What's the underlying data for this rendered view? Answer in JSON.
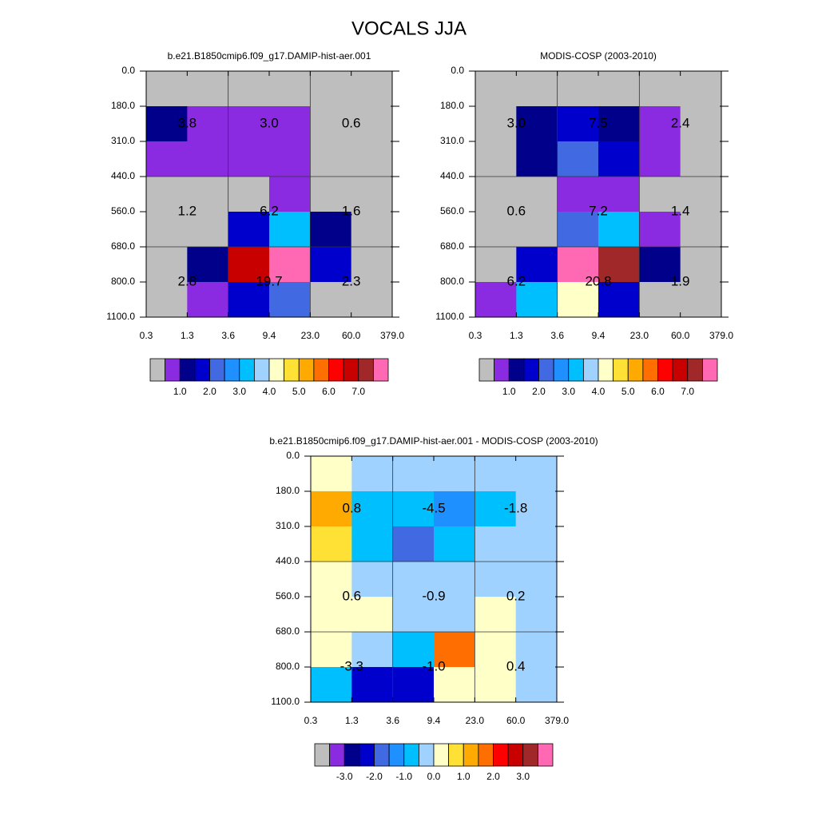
{
  "title": "VOCALS JJA",
  "chart_data": [
    {
      "type": "heatmap",
      "title": "b.e21.B1850cmip6.f09_g17.DAMIP-hist-aer.001",
      "x_edges": [
        0.3,
        1.3,
        3.6,
        9.4,
        {
          "value": 23,
          "label": "23.0"
        },
        {
          "value": 60,
          "label": "60.0"
        },
        {
          "value": 379,
          "label": "379.0"
        }
      ],
      "y_edges": [
        {
          "value": 0,
          "label": "0.0"
        },
        {
          "value": 180,
          "label": "180.0"
        },
        {
          "value": 310,
          "label": "310.0"
        },
        {
          "value": 440,
          "label": "440.0"
        },
        {
          "value": 560,
          "label": "560.0"
        },
        {
          "value": 680,
          "label": "680.0"
        },
        {
          "value": 800,
          "label": "800.0"
        },
        {
          "value": 1100,
          "label": "1100.0"
        }
      ],
      "values": [
        [
          0.2,
          0.2,
          0.2,
          0.2,
          0.2,
          0.2
        ],
        [
          1.25,
          0.75,
          0.75,
          0.75,
          0.2,
          0.2
        ],
        [
          0.75,
          0.75,
          0.75,
          0.75,
          0.2,
          0.2
        ],
        [
          0.2,
          0.2,
          0.2,
          0.75,
          0.2,
          0.2
        ],
        [
          0.2,
          0.2,
          1.75,
          3.25,
          1.25,
          0.2
        ],
        [
          0.2,
          1.25,
          6.75,
          7.75,
          1.75,
          0.2
        ],
        [
          0.2,
          0.75,
          1.75,
          2.25,
          0.2,
          0.2
        ]
      ],
      "levels": [
        0.5,
        1,
        1.5,
        2,
        2.5,
        3,
        3.5,
        4,
        4.5,
        5,
        5.5,
        6,
        6.5,
        7,
        7.5
      ],
      "colors": [
        "#bebebe",
        "#8a2be2",
        "#00008b",
        "#0000cd",
        "#4169e1",
        "#1e90ff",
        "#00bfff",
        "#a0d2ff",
        "#ffffc8",
        "#ffe135",
        "#ffaa00",
        "#ff6e00",
        "#ff0000",
        "#c80000",
        "#a02828",
        "#ff69b4"
      ],
      "colorbar_ticks": [
        {
          "value": 1,
          "label": "1.0"
        },
        {
          "value": 2,
          "label": "2.0"
        },
        {
          "value": 3,
          "label": "3.0"
        },
        {
          "value": 4,
          "label": "4.0"
        },
        {
          "value": 5,
          "label": "5.0"
        },
        {
          "value": 6,
          "label": "6.0"
        },
        {
          "value": 7,
          "label": "7.0"
        }
      ],
      "annotations": {
        "values": [
          3.8,
          3,
          0.6,
          1.2,
          6.2,
          1.6,
          2.8,
          19.7,
          2.3
        ],
        "value_labels": [
          "3.8",
          "3.0",
          "0.6",
          "1.2",
          "6.2",
          "1.6",
          "2.8",
          "19.7",
          "2.3"
        ]
      }
    },
    {
      "type": "heatmap",
      "title": "MODIS-COSP (2003-2010)",
      "x_edges": [
        0.3,
        1.3,
        3.6,
        9.4,
        {
          "value": 23,
          "label": "23.0"
        },
        {
          "value": 60,
          "label": "60.0"
        },
        {
          "value": 379,
          "label": "379.0"
        }
      ],
      "y_edges": [
        {
          "value": 0,
          "label": "0.0"
        },
        {
          "value": 180,
          "label": "180.0"
        },
        {
          "value": 310,
          "label": "310.0"
        },
        {
          "value": 440,
          "label": "440.0"
        },
        {
          "value": 560,
          "label": "560.0"
        },
        {
          "value": 680,
          "label": "680.0"
        },
        {
          "value": 800,
          "label": "800.0"
        },
        {
          "value": 1100,
          "label": "1100.0"
        }
      ],
      "values": [
        [
          0.2,
          0.2,
          0.2,
          0.2,
          0.2,
          0.2
        ],
        [
          0.2,
          1.25,
          1.75,
          1.25,
          0.75,
          0.2
        ],
        [
          0.2,
          1.25,
          2.25,
          1.75,
          0.75,
          0.2
        ],
        [
          0.2,
          0.2,
          0.75,
          0.75,
          0.2,
          0.2
        ],
        [
          0.2,
          0.2,
          2.25,
          3.25,
          0.75,
          0.2
        ],
        [
          0.2,
          1.75,
          7.75,
          7.25,
          1.25,
          0.2
        ],
        [
          0.75,
          3.25,
          4.25,
          1.75,
          0.2,
          0.2
        ]
      ],
      "levels": [
        0.5,
        1,
        1.5,
        2,
        2.5,
        3,
        3.5,
        4,
        4.5,
        5,
        5.5,
        6,
        6.5,
        7,
        7.5
      ],
      "colors": [
        "#bebebe",
        "#8a2be2",
        "#00008b",
        "#0000cd",
        "#4169e1",
        "#1e90ff",
        "#00bfff",
        "#a0d2ff",
        "#ffffc8",
        "#ffe135",
        "#ffaa00",
        "#ff6e00",
        "#ff0000",
        "#c80000",
        "#a02828",
        "#ff69b4"
      ],
      "colorbar_ticks": [
        {
          "value": 1,
          "label": "1.0"
        },
        {
          "value": 2,
          "label": "2.0"
        },
        {
          "value": 3,
          "label": "3.0"
        },
        {
          "value": 4,
          "label": "4.0"
        },
        {
          "value": 5,
          "label": "5.0"
        },
        {
          "value": 6,
          "label": "6.0"
        },
        {
          "value": 7,
          "label": "7.0"
        }
      ],
      "annotations": {
        "values": [
          3,
          7.5,
          2.4,
          0.6,
          7.2,
          1.4,
          6.2,
          20.8,
          1.9
        ],
        "value_labels": [
          "3.0",
          "7.5",
          "2.4",
          "0.6",
          "7.2",
          "1.4",
          "6.2",
          "20.8",
          "1.9"
        ]
      }
    },
    {
      "type": "heatmap",
      "title": "b.e21.B1850cmip6.f09_g17.DAMIP-hist-aer.001 - MODIS-COSP (2003-2010)",
      "x_edges": [
        0.3,
        1.3,
        3.6,
        9.4,
        {
          "value": 23,
          "label": "23.0"
        },
        {
          "value": 60,
          "label": "60.0"
        },
        {
          "value": 379,
          "label": "379.0"
        }
      ],
      "y_edges": [
        {
          "value": 0,
          "label": "0.0"
        },
        {
          "value": 180,
          "label": "180.0"
        },
        {
          "value": 310,
          "label": "310.0"
        },
        {
          "value": 440,
          "label": "440.0"
        },
        {
          "value": 560,
          "label": "560.0"
        },
        {
          "value": 680,
          "label": "680.0"
        },
        {
          "value": 800,
          "label": "800.0"
        },
        {
          "value": 1100,
          "label": "1100.0"
        }
      ],
      "values": [
        [
          0.25,
          -0.25,
          -0.25,
          -0.25,
          -0.25,
          -0.25
        ],
        [
          1.25,
          -0.75,
          -0.75,
          -1.25,
          -0.75,
          -0.25
        ],
        [
          0.75,
          -0.75,
          -1.75,
          -0.75,
          -0.25,
          -0.25
        ],
        [
          0.25,
          -0.25,
          -0.25,
          -0.25,
          -0.25,
          -0.25
        ],
        [
          0.25,
          0.25,
          -0.25,
          -0.25,
          0.25,
          -0.25
        ],
        [
          0.25,
          -0.25,
          -0.75,
          1.75,
          0.25,
          -0.25
        ],
        [
          -0.75,
          -2.25,
          -2.25,
          0.25,
          0.25,
          -0.25
        ]
      ],
      "levels": [
        -3.5,
        -3,
        -2.5,
        -2,
        -1.5,
        -1,
        -0.5,
        0,
        0.5,
        1,
        1.5,
        2,
        2.5,
        3,
        3.5
      ],
      "colors": [
        "#bebebe",
        "#8a2be2",
        "#00008b",
        "#0000cd",
        "#4169e1",
        "#1e90ff",
        "#00bfff",
        "#a0d2ff",
        "#ffffc8",
        "#ffe135",
        "#ffaa00",
        "#ff6e00",
        "#ff0000",
        "#c80000",
        "#a02828",
        "#ff69b4"
      ],
      "colorbar_ticks": [
        {
          "value": -3,
          "label": "-3.0"
        },
        {
          "value": -2,
          "label": "-2.0"
        },
        {
          "value": -1,
          "label": "-1.0"
        },
        {
          "value": 0,
          "label": "0.0"
        },
        {
          "value": 1,
          "label": "1.0"
        },
        {
          "value": 2,
          "label": "2.0"
        },
        {
          "value": 3,
          "label": "3.0"
        }
      ],
      "annotations": {
        "values": [
          0.8,
          -4.5,
          -1.8,
          0.6,
          -0.9,
          0.2,
          -3.3,
          -1,
          0.4
        ],
        "value_labels": [
          "0.8",
          "-4.5",
          "-1.8",
          "0.6",
          "-0.9",
          "0.2",
          "-3.3",
          "-1.0",
          "0.4"
        ]
      }
    }
  ]
}
